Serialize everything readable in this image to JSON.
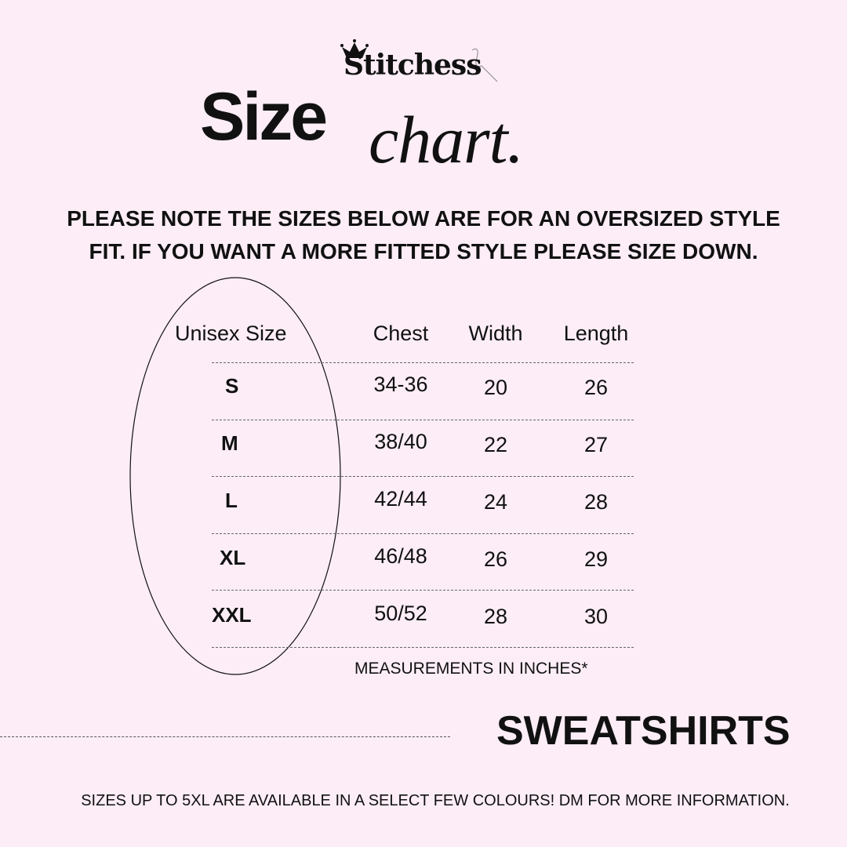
{
  "brand": "Stitchess",
  "title": {
    "bold": "Size",
    "script": "chart."
  },
  "note": [
    "PLEASE NOTE THE SIZES BELOW ARE FOR AN OVERSIZED STYLE",
    "FIT. IF YOU WANT A MORE FITTED STYLE PLEASE SIZE DOWN."
  ],
  "table": {
    "headers": [
      "Unisex Size",
      "Chest",
      "Width",
      "Length"
    ],
    "rows": [
      [
        "S",
        "34-36",
        "20",
        "26"
      ],
      [
        "M",
        "38/40",
        "22",
        "27"
      ],
      [
        "L",
        "42/44",
        "24",
        "28"
      ],
      [
        "XL",
        "46/48",
        "26",
        "29"
      ],
      [
        "XXL",
        "50/52",
        "28",
        "30"
      ]
    ]
  },
  "units_note": "MEASUREMENTS IN INCHES*",
  "category": "SWEATSHIRTS",
  "footer": "SIZES UP TO 5XL ARE AVAILABLE IN A SELECT FEW COLOURS! DM FOR MORE INFORMATION.",
  "colors": {
    "background": "#fcedf6",
    "text": "#111111"
  }
}
